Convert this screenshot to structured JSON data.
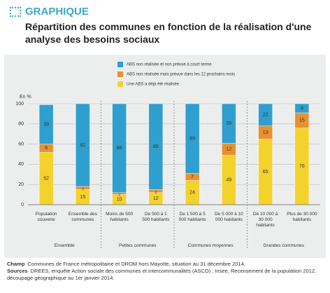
{
  "header": {
    "label": "GRAPHIQUE",
    "title": "Répartition des communes en fonction de la réalisation d'une analyse des besoins sociaux"
  },
  "chart_data": {
    "type": "stacked_bar",
    "y_label": "En %",
    "categories": [
      "Population couverte",
      "Ensemble des communes",
      "Moins de 500 habitants",
      "De 500 à 1 500 habitants",
      "De 1 500 à 5 000 habitants",
      "De 5 000 à 10 000 habitants",
      "De 10 000 à 30 000 habitants",
      "Plus de 30 000 habitants"
    ],
    "groups": [
      {
        "name": "Ensemble",
        "size": 2
      },
      {
        "name": "Petites communes",
        "size": 2
      },
      {
        "name": "Communes moyennes",
        "size": 2
      },
      {
        "name": "Grandes communes",
        "size": 2
      }
    ],
    "series": [
      {
        "name": "Une ABS a déjà été réalisée",
        "color": "#f4d22c",
        "values": [
          52,
          15,
          10,
          12,
          24,
          49,
          65,
          76
        ]
      },
      {
        "name": "ABS non réalisée mais prévue dans les 12 prochains mois",
        "color": "#e8912f",
        "values": [
          8,
          3,
          2,
          3,
          7,
          12,
          13,
          15
        ]
      },
      {
        "name": "ABS non réalisée et non prévue à court terme",
        "color": "#2f9fcf",
        "values": [
          39,
          82,
          88,
          85,
          69,
          39,
          22,
          9
        ]
      }
    ],
    "ylim": [
      0,
      100
    ],
    "yticks": [
      0,
      20,
      40,
      60,
      80,
      100
    ],
    "grid": true
  },
  "notes": [
    {
      "label": "Champ",
      "text": "Communes de France métropolitaine et DROM hors Mayotte, situation au 31 décembre 2014."
    },
    {
      "label": "Sources",
      "text": "DREES, enquête Action sociale des communes et intercommunalités (ASCO) ; Insee, Recensement de la population 2012, découpage géographique au 1er janvier 2014."
    }
  ]
}
